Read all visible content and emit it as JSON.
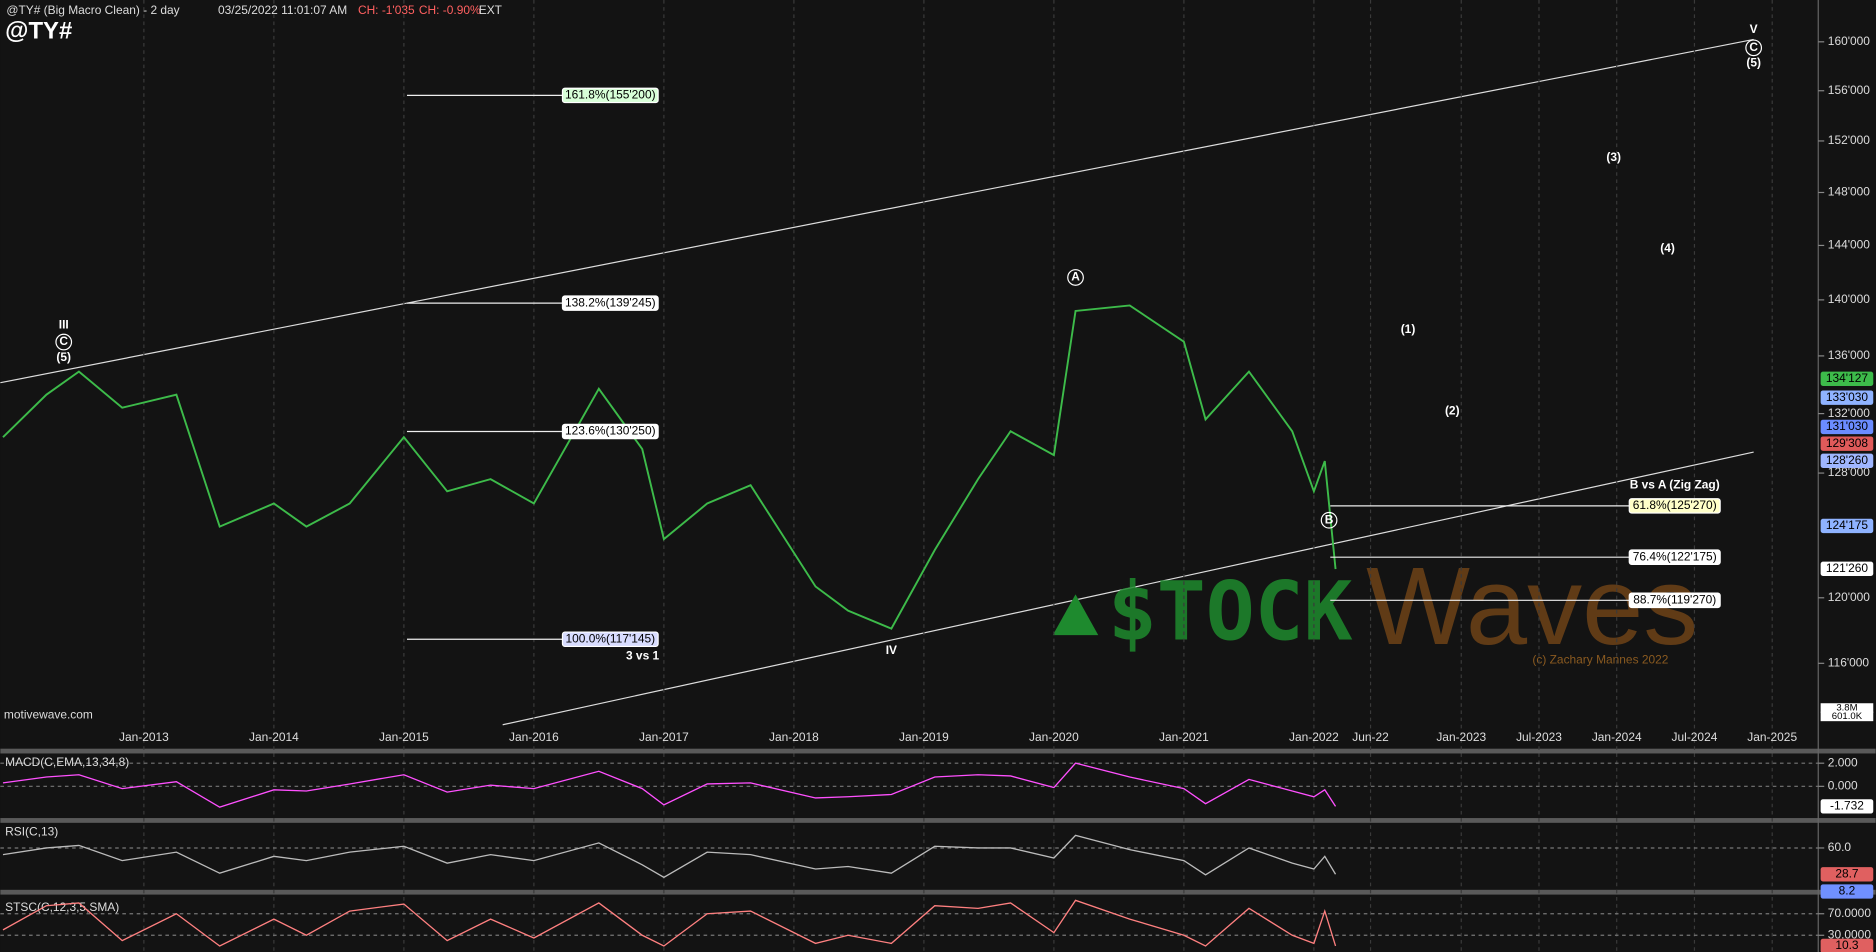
{
  "header": {
    "title": "@TY# (Big Macro Clean) - 2 day",
    "timestamp": "03/25/2022 11:01:07 AM",
    "change": "CH: -1'035",
    "change_pct": "CH: -0.90%",
    "session": "EXT",
    "symbol": "@TY#",
    "source": "motivewave.com"
  },
  "chart_data": [
    {
      "type": "line",
      "log_scale": true,
      "grid": true,
      "color": "#3dbb4a",
      "x": [
        "2011-12",
        "2012-04",
        "2012-07",
        "2012-11",
        "2013-04",
        "2013-08",
        "2014-01",
        "2014-04",
        "2014-08",
        "2015-01",
        "2015-05",
        "2015-09",
        "2016-01",
        "2016-07",
        "2016-11",
        "2017-01",
        "2017-05",
        "2017-09",
        "2018-03",
        "2018-06",
        "2018-10",
        "2019-02",
        "2019-06",
        "2019-09",
        "2020-01",
        "2020-03",
        "2020-08",
        "2021-01",
        "2021-03",
        "2021-07",
        "2021-11",
        "2022-01",
        "2022-02",
        "2022-03"
      ],
      "values": [
        130.4,
        133.3,
        134.9,
        132.4,
        133.3,
        124.5,
        126.0,
        124.5,
        126.0,
        130.4,
        126.8,
        127.6,
        126.0,
        133.7,
        129.6,
        123.7,
        126.0,
        127.2,
        120.7,
        119.2,
        118.1,
        123.0,
        127.6,
        130.8,
        129.2,
        139.2,
        139.6,
        137.0,
        131.6,
        134.9,
        130.8,
        126.8,
        128.8,
        121.8
      ],
      "ylim": [
        112.3,
        163.5
      ],
      "yticks": [
        {
          "value": 116,
          "label": "116'000"
        },
        {
          "value": 120,
          "label": "120'000"
        },
        {
          "value": 128,
          "label": "128'000"
        },
        {
          "value": 132,
          "label": "132'000"
        },
        {
          "value": 136,
          "label": "136'000"
        },
        {
          "value": 140,
          "label": "140'000"
        },
        {
          "value": 144,
          "label": "144'000"
        },
        {
          "value": 148,
          "label": "148'000"
        },
        {
          "value": 152,
          "label": "152'000"
        },
        {
          "value": 156,
          "label": "156'000"
        },
        {
          "value": 160,
          "label": "160'000"
        }
      ],
      "xticks": [
        {
          "value": "2013-01",
          "label": "Jan-2013"
        },
        {
          "value": "2014-01",
          "label": "Jan-2014"
        },
        {
          "value": "2015-01",
          "label": "Jan-2015"
        },
        {
          "value": "2016-01",
          "label": "Jan-2016"
        },
        {
          "value": "2017-01",
          "label": "Jan-2017"
        },
        {
          "value": "2018-01",
          "label": "Jan-2018"
        },
        {
          "value": "2019-01",
          "label": "Jan-2019"
        },
        {
          "value": "2020-01",
          "label": "Jan-2020"
        },
        {
          "value": "2021-01",
          "label": "Jan-2021"
        },
        {
          "value": "2022-01",
          "label": "Jan-2022"
        },
        {
          "value": "2022-06",
          "label": "Jun-22"
        },
        {
          "value": "2023-01",
          "label": "Jan-2023"
        },
        {
          "value": "2023-07",
          "label": "Jul-2023"
        },
        {
          "value": "2024-01",
          "label": "Jan-2024"
        },
        {
          "value": "2024-07",
          "label": "Jul-2024"
        },
        {
          "value": "2025-01",
          "label": "Jan-2025"
        }
      ],
      "price_tags": [
        {
          "value": 134.398,
          "label": "134'127",
          "color": "#3dbb4a"
        },
        {
          "value": 133.094,
          "label": "133'030",
          "color": "#8fb3ff"
        },
        {
          "value": 131.094,
          "label": "131'030",
          "color": "#6b8cff"
        },
        {
          "value": 129.963,
          "label": "129'308",
          "color": "#e05a5a"
        },
        {
          "value": 128.813,
          "label": "128'260",
          "color": "#9fb6ff"
        },
        {
          "value": 124.547,
          "label": "124'175",
          "color": "#8fb3ff"
        },
        {
          "value": 121.813,
          "label": "121'260",
          "color": "#ffffff"
        }
      ],
      "fib_levels": [
        {
          "value": 155.625,
          "label": "161.8%(155'200)",
          "color": "#d8ffd8"
        },
        {
          "value": 139.766,
          "label": "138.2%(139'245)",
          "color": "#ffffff"
        },
        {
          "value": 130.781,
          "label": "123.6%(130'250)",
          "color": "#ffffff"
        },
        {
          "value": 117.453,
          "label": "100.0%(117'145)",
          "color": "#d8dcff"
        },
        {
          "value": 125.844,
          "label": "61.8%(125'270)",
          "color": "#ffffc8"
        },
        {
          "value": 122.547,
          "label": "76.4%(122'175)",
          "color": "#ffffff"
        },
        {
          "value": 119.844,
          "label": "88.7%(119'270)",
          "color": "#ffffff"
        }
      ],
      "annotations": [
        "III",
        "C",
        "(5)",
        "A",
        "B",
        "IV",
        "V",
        "C",
        "(5)",
        "(1)",
        "(2)",
        "(3)",
        "(4)",
        "3 vs 1",
        "B vs A (Zig Zag)"
      ],
      "volume_labels": [
        "3.8M",
        "601.0K"
      ],
      "watermark": [
        "$TOCK",
        "Waves"
      ],
      "credit": "(c) Zachary Mannes 2022"
    },
    {
      "type": "line",
      "title": "MACD(C,EMA,13,34,8)",
      "color": "#ff50ff",
      "values": [
        0.3,
        0.8,
        1.0,
        -0.2,
        0.4,
        -1.8,
        -0.3,
        -0.4,
        0.2,
        1.0,
        -0.5,
        0.1,
        -0.2,
        1.3,
        -0.2,
        -1.6,
        0.2,
        0.3,
        -1.0,
        -0.9,
        -0.7,
        0.8,
        1.0,
        0.9,
        -0.1,
        2.0,
        0.8,
        -0.2,
        -1.5,
        0.6,
        -0.4,
        -0.9,
        -0.3,
        -1.732
      ],
      "ylim": [
        -2.74,
        2.84
      ],
      "yticks": [
        {
          "value": 2,
          "label": "2.000"
        },
        {
          "value": 0,
          "label": "0.000"
        }
      ],
      "tags": [
        {
          "value": -1.732,
          "label": "-1.732",
          "color": "#ffffff"
        }
      ]
    },
    {
      "type": "line",
      "title": "RSI(C,13)",
      "color": "#bbbbbb",
      "values": [
        52,
        60,
        63,
        45,
        55,
        30,
        50,
        45,
        55,
        62,
        42,
        52,
        45,
        66,
        40,
        25,
        55,
        52,
        35,
        38,
        30,
        62,
        60,
        60,
        48,
        75,
        58,
        45,
        28,
        60,
        42,
        35,
        50,
        28.7
      ],
      "ylim": [
        8.8,
        89.9
      ],
      "yticks": [
        {
          "value": 60,
          "label": "60.0"
        }
      ],
      "tags": [
        {
          "value": 28.7,
          "label": "28.7",
          "color": "#e06060"
        },
        {
          "value": 8.2,
          "label": "8.2",
          "color": "#7090ff"
        }
      ]
    },
    {
      "type": "line",
      "title": "STSC(C,12,3,5,SMA)",
      "color": "#ff8080",
      "values": [
        40,
        85,
        90,
        20,
        70,
        10,
        60,
        30,
        75,
        88,
        20,
        60,
        25,
        90,
        30,
        10,
        70,
        75,
        15,
        30,
        15,
        85,
        80,
        90,
        35,
        95,
        60,
        30,
        10,
        80,
        30,
        15,
        75,
        10.3
      ],
      "ylim": [
        -1.1,
        105.6
      ],
      "yticks": [
        {
          "value": 70,
          "label": "70.0000"
        },
        {
          "value": 30,
          "label": "30.0000"
        }
      ],
      "tags": [
        {
          "value": 10.3,
          "label": "10.3",
          "color": "#e06060"
        }
      ]
    }
  ]
}
